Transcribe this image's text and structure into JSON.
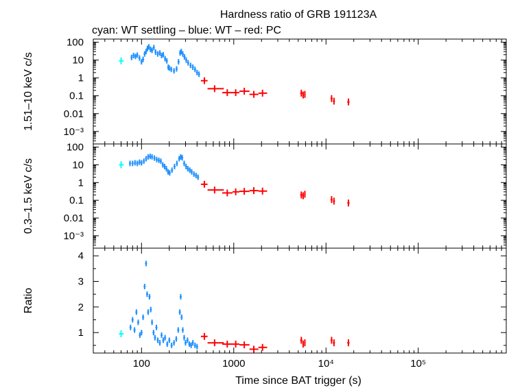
{
  "title": "Hardness ratio of GRB 191123A",
  "subtitle": "cyan: WT settling – blue: WT – red: PC",
  "xlabel": "Time since BAT trigger (s)",
  "colors": {
    "cyan": "#00ffff",
    "blue": "#1e90ff",
    "red": "#ff0000"
  },
  "chart_data": [
    {
      "type": "scatter",
      "panel": "hard",
      "ylabel": "1.51–10 keV c/s",
      "yscale": "log",
      "ylim": [
        0.0002,
        150
      ],
      "xscale": "log",
      "xlim": [
        30,
        900000
      ],
      "yticks": [
        {
          "v": 100,
          "label": "100"
        },
        {
          "v": 10,
          "label": "10"
        },
        {
          "v": 1,
          "label": "1"
        },
        {
          "v": 0.1,
          "label": "0.1"
        },
        {
          "v": 0.01,
          "label": "0.01"
        },
        {
          "v": 0.001,
          "label": "10⁻³"
        }
      ],
      "series": [
        {
          "mode": "WT settling",
          "color": "cyan",
          "points": [
            [
              60,
              9,
              57,
              64
            ]
          ]
        },
        {
          "mode": "WT",
          "color": "blue",
          "points": [
            [
              78,
              14
            ],
            [
              82,
              18
            ],
            [
              86,
              16
            ],
            [
              90,
              19
            ],
            [
              95,
              13
            ],
            [
              100,
              8
            ],
            [
              104,
              11
            ],
            [
              108,
              22
            ],
            [
              112,
              30
            ],
            [
              116,
              45
            ],
            [
              120,
              55
            ],
            [
              125,
              40
            ],
            [
              130,
              35
            ],
            [
              136,
              50
            ],
            [
              142,
              28
            ],
            [
              150,
              22
            ],
            [
              158,
              25
            ],
            [
              165,
              18
            ],
            [
              172,
              20
            ],
            [
              180,
              12
            ],
            [
              188,
              9
            ],
            [
              195,
              4
            ],
            [
              200,
              3.5
            ],
            [
              210,
              3
            ],
            [
              225,
              2.5
            ],
            [
              240,
              3.2
            ],
            [
              252,
              8
            ],
            [
              262,
              25
            ],
            [
              270,
              30
            ],
            [
              280,
              22
            ],
            [
              292,
              15
            ],
            [
              305,
              10
            ],
            [
              320,
              7
            ],
            [
              340,
              5
            ],
            [
              360,
              4
            ],
            [
              380,
              3
            ],
            [
              400,
              2
            ],
            [
              420,
              1.6
            ]
          ]
        },
        {
          "mode": "PC",
          "color": "red",
          "points": [
            [
              480,
              0.7,
              440,
              520
            ],
            [
              620,
              0.25,
              520,
              780
            ],
            [
              850,
              0.15,
              750,
              970
            ],
            [
              1050,
              0.15,
              970,
              1150
            ],
            [
              1300,
              0.18,
              1150,
              1480
            ],
            [
              1650,
              0.12,
              1480,
              1850
            ],
            [
              2050,
              0.14,
              1850,
              2300
            ],
            [
              5400,
              0.14,
              5250,
              5550
            ],
            [
              5650,
              0.11,
              5550,
              5750
            ],
            [
              5900,
              0.12,
              5800,
              6000
            ],
            [
              11500,
              0.07,
              11200,
              11800
            ],
            [
              12200,
              0.05,
              11900,
              12500
            ],
            [
              17500,
              0.045,
              17000,
              18000
            ]
          ]
        }
      ]
    },
    {
      "type": "scatter",
      "panel": "soft",
      "ylabel": "0.3–1.5 keV c/s",
      "yscale": "log",
      "ylim": [
        0.0002,
        150
      ],
      "xscale": "log",
      "xlim": [
        30,
        900000
      ],
      "yticks": [
        {
          "v": 100,
          "label": "100"
        },
        {
          "v": 10,
          "label": "10"
        },
        {
          "v": 1,
          "label": "1"
        },
        {
          "v": 0.1,
          "label": "0.1"
        },
        {
          "v": 0.01,
          "label": "0.01"
        },
        {
          "v": 0.001,
          "label": "10⁻³"
        }
      ],
      "series": [
        {
          "mode": "WT settling",
          "color": "cyan",
          "points": [
            [
              60,
              10,
              57,
              64
            ]
          ]
        },
        {
          "mode": "WT",
          "color": "blue",
          "points": [
            [
              75,
              12
            ],
            [
              80,
              12
            ],
            [
              85,
              13
            ],
            [
              90,
              12
            ],
            [
              95,
              14
            ],
            [
              100,
              13
            ],
            [
              106,
              16
            ],
            [
              112,
              22
            ],
            [
              118,
              28
            ],
            [
              124,
              30
            ],
            [
              130,
              28
            ],
            [
              138,
              24
            ],
            [
              146,
              20
            ],
            [
              154,
              18
            ],
            [
              162,
              16
            ],
            [
              170,
              10
            ],
            [
              178,
              8
            ],
            [
              186,
              6
            ],
            [
              194,
              4
            ],
            [
              202,
              3.5
            ],
            [
              214,
              5
            ],
            [
              228,
              8
            ],
            [
              242,
              12
            ],
            [
              256,
              22
            ],
            [
              266,
              28
            ],
            [
              276,
              25
            ],
            [
              290,
              12
            ],
            [
              304,
              8
            ],
            [
              318,
              6
            ],
            [
              334,
              5
            ],
            [
              350,
              4
            ],
            [
              370,
              3
            ],
            [
              390,
              2.5
            ],
            [
              410,
              2
            ]
          ]
        },
        {
          "mode": "PC",
          "color": "red",
          "points": [
            [
              480,
              0.8,
              440,
              520
            ],
            [
              620,
              0.38,
              520,
              780
            ],
            [
              850,
              0.26,
              750,
              970
            ],
            [
              1050,
              0.3,
              970,
              1150
            ],
            [
              1300,
              0.32,
              1150,
              1480
            ],
            [
              1650,
              0.35,
              1480,
              1850
            ],
            [
              2050,
              0.33,
              1850,
              2300
            ],
            [
              5400,
              0.2,
              5250,
              5550
            ],
            [
              5650,
              0.18,
              5550,
              5750
            ],
            [
              5900,
              0.22,
              5800,
              6000
            ],
            [
              11500,
              0.11,
              11200,
              11800
            ],
            [
              12200,
              0.09,
              11900,
              12500
            ],
            [
              17500,
              0.07,
              17000,
              18000
            ]
          ]
        }
      ]
    },
    {
      "type": "scatter",
      "panel": "ratio",
      "ylabel": "Ratio",
      "yscale": "linear",
      "ylim": [
        0.2,
        4.3
      ],
      "xscale": "log",
      "xlim": [
        30,
        900000
      ],
      "yticks": [
        {
          "v": 1,
          "label": "1"
        },
        {
          "v": 2,
          "label": "2"
        },
        {
          "v": 3,
          "label": "3"
        },
        {
          "v": 4,
          "label": "4"
        }
      ],
      "series": [
        {
          "mode": "WT settling",
          "color": "cyan",
          "points": [
            [
              60,
              0.95,
              57,
              64
            ]
          ]
        },
        {
          "mode": "WT",
          "color": "blue",
          "points": [
            [
              76,
              1.2
            ],
            [
              80,
              1.5
            ],
            [
              84,
              1.1
            ],
            [
              88,
              1.8
            ],
            [
              92,
              1.4
            ],
            [
              96,
              0.9
            ],
            [
              100,
              1.0
            ],
            [
              104,
              1.6
            ],
            [
              108,
              2.8
            ],
            [
              112,
              3.7
            ],
            [
              115,
              2.5
            ],
            [
              118,
              1.8
            ],
            [
              122,
              2.4
            ],
            [
              126,
              1.9
            ],
            [
              130,
              1.4
            ],
            [
              135,
              1.0
            ],
            [
              140,
              0.8
            ],
            [
              145,
              1.2
            ],
            [
              150,
              0.7
            ],
            [
              158,
              0.6
            ],
            [
              165,
              0.9
            ],
            [
              172,
              0.7
            ],
            [
              180,
              0.8
            ],
            [
              190,
              0.55
            ],
            [
              200,
              0.7
            ],
            [
              212,
              0.5
            ],
            [
              225,
              0.6
            ],
            [
              238,
              0.75
            ],
            [
              250,
              1.1
            ],
            [
              260,
              1.8
            ],
            [
              266,
              2.4
            ],
            [
              272,
              1.6
            ],
            [
              280,
              1.1
            ],
            [
              290,
              0.8
            ],
            [
              300,
              0.6
            ],
            [
              315,
              0.7
            ],
            [
              330,
              0.55
            ],
            [
              345,
              0.5
            ],
            [
              360,
              0.6
            ],
            [
              380,
              0.5
            ],
            [
              400,
              0.45
            ]
          ]
        },
        {
          "mode": "PC",
          "color": "red",
          "points": [
            [
              480,
              0.85,
              440,
              520
            ],
            [
              620,
              0.6,
              520,
              780
            ],
            [
              850,
              0.55,
              750,
              970
            ],
            [
              1050,
              0.55,
              970,
              1150
            ],
            [
              1300,
              0.52,
              1150,
              1480
            ],
            [
              1650,
              0.35,
              1480,
              1850
            ],
            [
              2050,
              0.42,
              1850,
              2300
            ],
            [
              5400,
              0.7,
              5250,
              5550
            ],
            [
              5650,
              0.55,
              5550,
              5750
            ],
            [
              5900,
              0.6,
              5800,
              6000
            ],
            [
              11500,
              0.7,
              11200,
              11800
            ],
            [
              12200,
              0.6,
              11900,
              12500
            ],
            [
              17500,
              0.6,
              17000,
              18000
            ]
          ]
        }
      ]
    }
  ],
  "xticks": [
    {
      "v": 100,
      "label": "100"
    },
    {
      "v": 1000,
      "label": "1000"
    },
    {
      "v": 10000,
      "label": "10⁴"
    },
    {
      "v": 100000,
      "label": "10⁵"
    }
  ]
}
